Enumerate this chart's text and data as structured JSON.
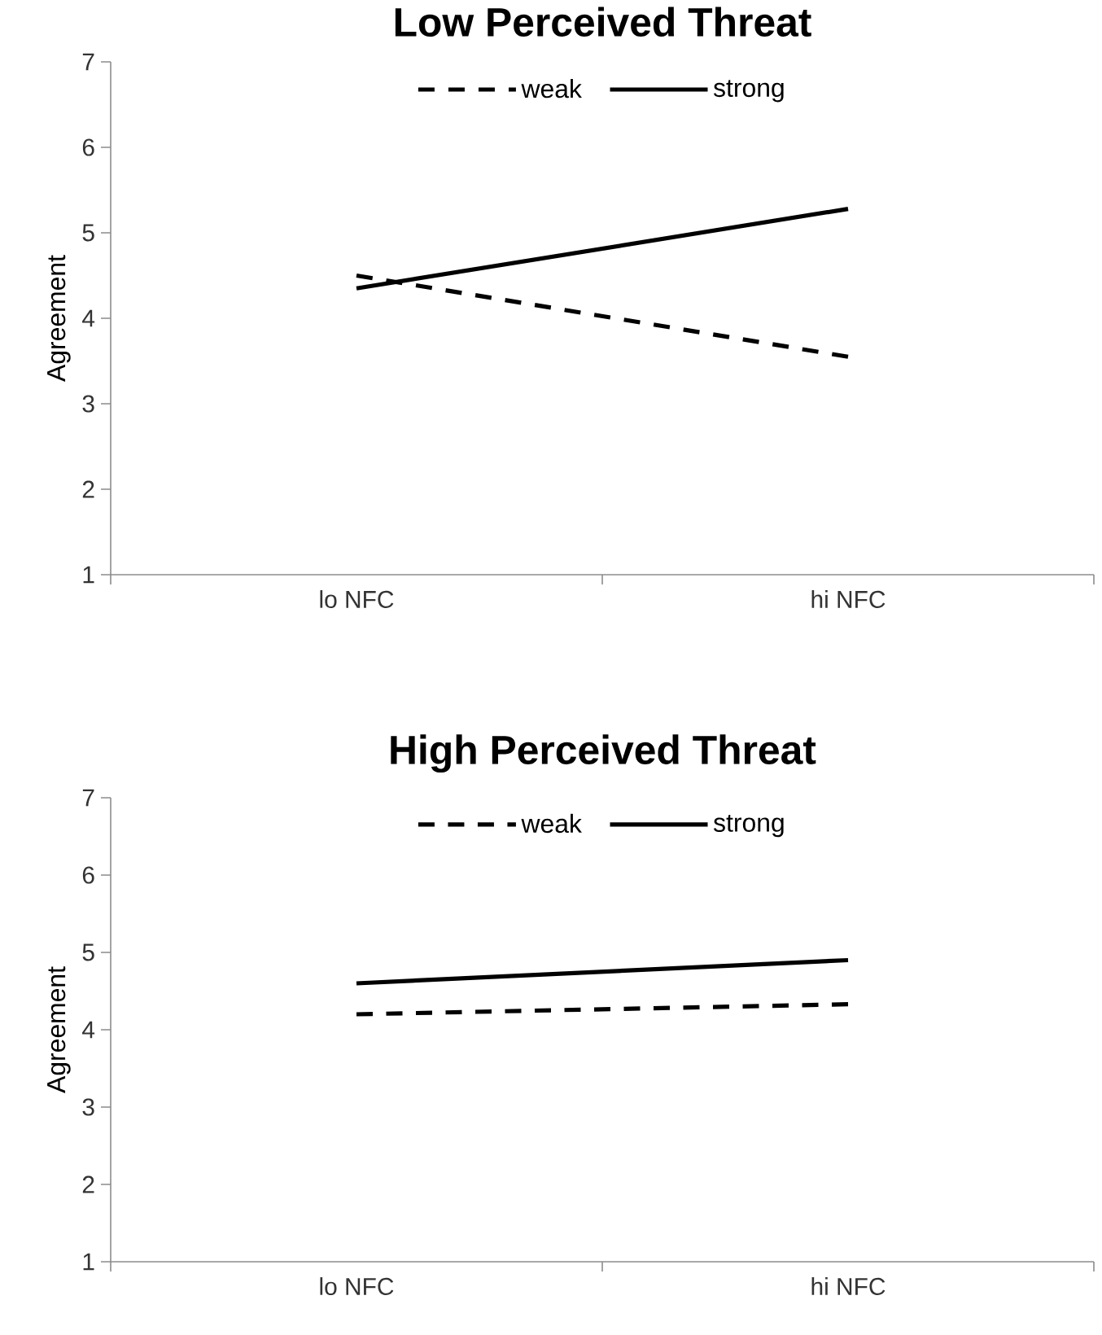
{
  "chart_data": [
    {
      "type": "line",
      "title": "Low Perceived Threat",
      "ylabel": "Agreement",
      "categories": [
        "lo NFC",
        "hi NFC"
      ],
      "ylim": [
        1,
        7
      ],
      "yticks": [
        1,
        2,
        3,
        4,
        5,
        6,
        7
      ],
      "legend": "top",
      "series": [
        {
          "name": "weak",
          "color": "#000000",
          "line_style": "dashed",
          "values": [
            4.5,
            3.55
          ]
        },
        {
          "name": "strong",
          "color": "#000000",
          "line_style": "solid",
          "values": [
            4.35,
            5.28
          ]
        }
      ]
    },
    {
      "type": "line",
      "title": "High Perceived Threat",
      "ylabel": "Agreement",
      "categories": [
        "lo NFC",
        "hi NFC"
      ],
      "ylim": [
        1,
        7
      ],
      "yticks": [
        1,
        2,
        3,
        4,
        5,
        6,
        7
      ],
      "legend": "top",
      "series": [
        {
          "name": "weak",
          "color": "#000000",
          "line_style": "dashed",
          "values": [
            4.2,
            4.33
          ]
        },
        {
          "name": "strong",
          "color": "#000000",
          "line_style": "solid",
          "values": [
            4.6,
            4.9
          ]
        }
      ]
    }
  ]
}
